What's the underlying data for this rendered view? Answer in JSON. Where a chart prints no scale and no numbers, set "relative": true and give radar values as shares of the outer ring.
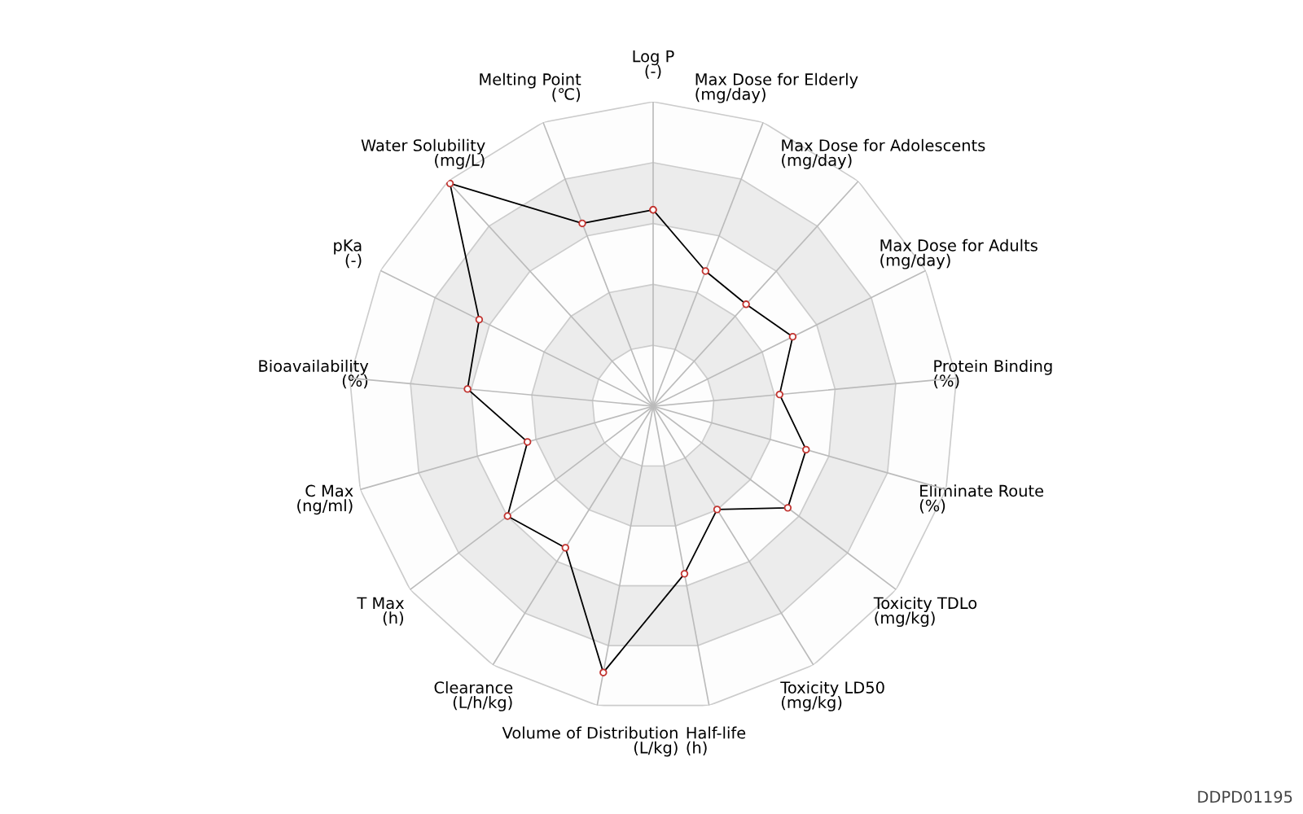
{
  "chart_data": {
    "type": "radar",
    "relative": true,
    "grid": true,
    "marker": "circle",
    "line_style": "solid",
    "categories": [
      "Log P\n(-)",
      "Max Dose for Elderly\n(mg/day)",
      "Max Dose for Adolescents\n(mg/day)",
      "Max Dose for Adults\n(mg/day)",
      "Protein Binding\n(%)",
      "Eliminate Route\n(%)",
      "Toxicity TDLo\n(mg/kg)",
      "Toxicity LD50\n(mg/kg)",
      "Half-life\n(h)",
      "Volume of Distribution\n(L/kg)",
      "Clearance\n(L/h/kg)",
      "T Max\n(h)",
      "C Max\n(ng/ml)",
      "Bioavailability\n(%)",
      "pKa\n(-)",
      "Water Solubility\n(mg/L)",
      "Melting Point\n(℃)"
    ],
    "series": [
      {
        "color": "#000000",
        "values": [
          0.645,
          0.476,
          0.453,
          0.512,
          0.417,
          0.522,
          0.554,
          0.399,
          0.56,
          0.89,
          0.547,
          0.599,
          0.429,
          0.612,
          0.638,
          0.99,
          0.644
        ]
      }
    ],
    "annotations": [
      "DDPD01195"
    ]
  }
}
